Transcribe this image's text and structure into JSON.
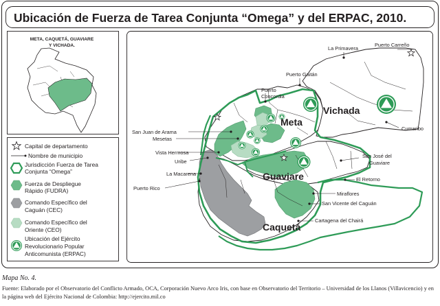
{
  "figure": {
    "title": "Ubicación de Fuerza de Tarea Conjunta “Omega” y del ERPAC, 2010.",
    "inset_title_line1": "META, CAQUETÁ, GUAVIARE",
    "inset_title_line2": "Y VICHADA."
  },
  "legend": {
    "items": [
      {
        "lines": [
          "Capital de departamento"
        ]
      },
      {
        "lines": [
          "Nombre de municipio"
        ]
      },
      {
        "lines": [
          "Jurisdicción Fuerza de Tarea",
          "Conjunta “Omega”"
        ]
      },
      {
        "lines": [
          "Fuerza de Despliegue",
          "Rápido (FUDRA)"
        ]
      },
      {
        "lines": [
          "Comando Específico del",
          "Caguán (CEC)"
        ]
      },
      {
        "lines": [
          "Comando Específico del",
          "Oriente (CEO)"
        ]
      },
      {
        "lines": [
          "Ubicación del Ejército",
          "Revolucionario Popular",
          "Anticomunista (ERPAC)"
        ]
      }
    ]
  },
  "departments": [
    "Meta",
    "Vichada",
    "Guaviare",
    "Caquetá"
  ],
  "municipalities": [
    "La Primavera",
    "Puerto Carreño",
    "Puerto Gaitán",
    "Puerto Concordia",
    "Cumaribo",
    "San Juan de Arama",
    "Mesetas",
    "Vista Hermosa",
    "Uribe",
    "La Macarena",
    "Puerto Rico",
    "San José del Guaviare",
    "El Retorno",
    "Miraflores",
    "San Vicente del Caguán",
    "Cartagena del Chairá"
  ],
  "caption": {
    "label": "Mapa No. 4.",
    "source": "Fuente: Elaborado por el Observatorio del Conflicto Armado, OCA, Corporación Nuevo Arco Iris, con base en Observatorio del Territorio – Universidad de los Llanos (Villavicencio) y en la página web del Ejército Nacional de Colombia: http://ejercito.mil.co"
  },
  "colors": {
    "omega_border": "#2e9b57",
    "fudra": "#6dbb8a",
    "cec": "#9d9fa2",
    "ceo": "#b7dcc3",
    "erpac": "#2e9b57",
    "map_line": "#231f20"
  }
}
